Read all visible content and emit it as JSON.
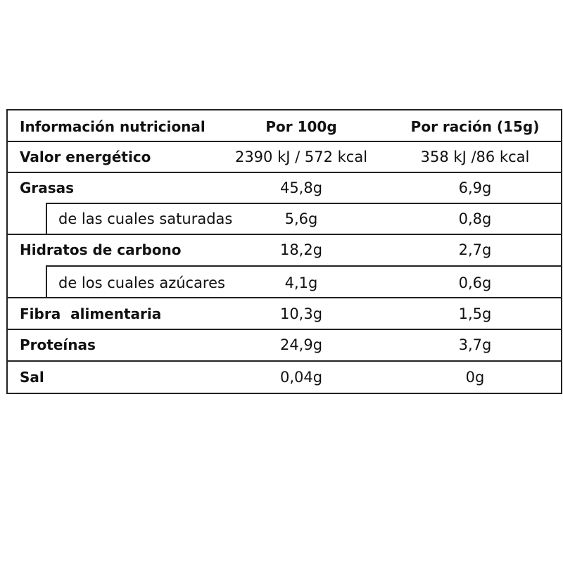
{
  "table": {
    "header": [
      "Información nutricional",
      "Por 100g",
      "Por ración (15g)"
    ],
    "rows": [
      [
        "Valor energético",
        "2390 kJ / 572 kcal",
        "358 kJ /86 kcal"
      ],
      [
        "Grasas",
        "45,8g",
        "6,9g"
      ],
      [
        "de las cuales saturadas",
        "5,6g",
        "0,8g"
      ],
      [
        "Hidratos de carbono",
        "18,2g",
        "2,7g"
      ],
      [
        "de los cuales azúcares",
        "4,1g",
        "0,6g"
      ],
      [
        "Fibra  alimentaria",
        "10,3g",
        "1,5g"
      ],
      [
        "Proteínas",
        "24,9g",
        "3,7g"
      ],
      [
        "Sal",
        "0,04g",
        "0g"
      ]
    ]
  }
}
